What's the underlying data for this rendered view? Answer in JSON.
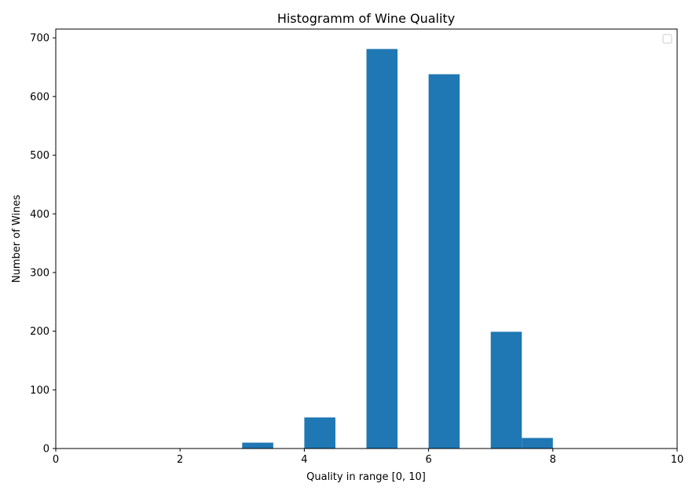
{
  "chart_data": {
    "type": "bar",
    "title": "Histogramm of Wine Quality",
    "xlabel": "Quality in range [0, 10]",
    "ylabel": "Number of Wines",
    "xlim": [
      0,
      10
    ],
    "ylim": [
      0,
      715
    ],
    "x_ticks": [
      0,
      2,
      4,
      6,
      8,
      10
    ],
    "y_ticks": [
      0,
      100,
      200,
      300,
      400,
      500,
      600,
      700
    ],
    "bar_color": "#1f77b4",
    "legend": {
      "placement": "upper-right",
      "entries": []
    },
    "grid": false,
    "bars": [
      {
        "x_start": 3.0,
        "x_end": 3.5,
        "value": 10
      },
      {
        "x_start": 4.0,
        "x_end": 4.5,
        "value": 53
      },
      {
        "x_start": 5.0,
        "x_end": 5.5,
        "value": 681
      },
      {
        "x_start": 6.0,
        "x_end": 6.5,
        "value": 638
      },
      {
        "x_start": 7.0,
        "x_end": 7.5,
        "value": 199
      },
      {
        "x_start": 7.5,
        "x_end": 8.0,
        "value": 18
      }
    ]
  }
}
